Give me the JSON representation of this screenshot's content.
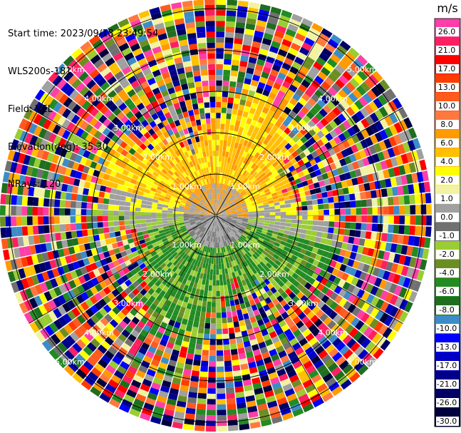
{
  "info": {
    "start_time": "Start time: 2023/09/18 23:49:54",
    "instrument": "WLS200s-181",
    "field": "Field: VEL",
    "elevation": "Elevation(deg): 35.30",
    "nrays": "NRays: 120"
  },
  "ring_labels": [
    "1.00km",
    "2.00km",
    "3.00km",
    "4.00km",
    "5.00km"
  ],
  "colorbar": {
    "unit": "m/s",
    "ticks": [
      "26.0",
      "21.0",
      "17.0",
      "13.0",
      "10.0",
      "8.0",
      "6.0",
      "4.0",
      "2.0",
      "1.0",
      "0.0",
      "-1.0",
      "-2.0",
      "-4.0",
      "-6.0",
      "-8.0",
      "-10.0",
      "-13.0",
      "-17.0",
      "-21.0",
      "-26.0",
      "-30.0"
    ],
    "colors": [
      "#ff3fa8",
      "#ff1f60",
      "#ff0000",
      "#ff3c00",
      "#ff5a1e",
      "#ff7840",
      "#ff9a00",
      "#ffc000",
      "#ffff00",
      "#f2f2a0",
      "#a0a0a0",
      "#707070",
      "#9acd32",
      "#6b8e23",
      "#228b22",
      "#1e6e1e",
      "#3c8cc8",
      "#0000ff",
      "#0000c0",
      "#00008b",
      "#000064",
      "#00003c"
    ]
  },
  "ppi": {
    "n_rays": 120,
    "range_km": 5.2,
    "gates": 40
  }
}
